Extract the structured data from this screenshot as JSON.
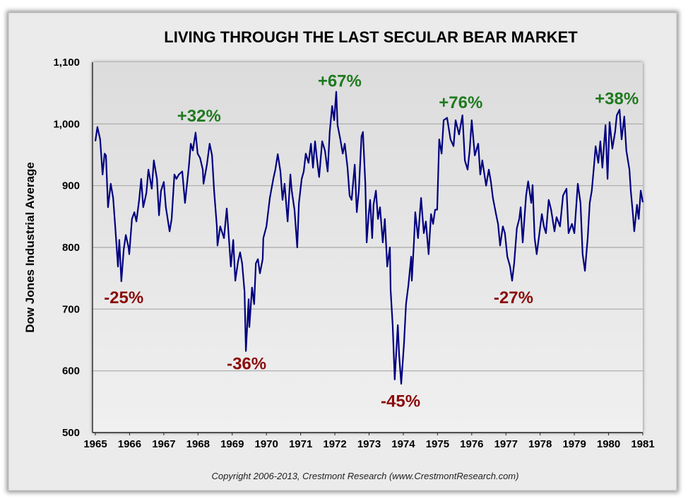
{
  "chart_data": {
    "type": "line",
    "title": "LIVING THROUGH THE LAST SECULAR BEAR MARKET",
    "xlabel": "",
    "ylabel": "Dow Jones Industrial Average",
    "xlim": [
      1965,
      1981
    ],
    "ylim": [
      500,
      1100
    ],
    "x_ticks": [
      "1965",
      "1966",
      "1967",
      "1968",
      "1969",
      "1970",
      "1971",
      "1972",
      "1973",
      "1974",
      "1975",
      "1976",
      "1977",
      "1978",
      "1979",
      "1980",
      "1981"
    ],
    "y_ticks": [
      "500",
      "600",
      "700",
      "800",
      "900",
      "1,000",
      "1,100"
    ],
    "grid": "horizontal",
    "line_color": "#000080",
    "series": [
      {
        "points": [
          [
            1965.0,
            972
          ],
          [
            1965.06,
            995
          ],
          [
            1965.14,
            975
          ],
          [
            1965.21,
            918
          ],
          [
            1965.27,
            952
          ],
          [
            1965.31,
            949
          ],
          [
            1965.37,
            865
          ],
          [
            1965.45,
            903
          ],
          [
            1965.52,
            880
          ],
          [
            1965.58,
            834
          ],
          [
            1965.66,
            769
          ],
          [
            1965.7,
            812
          ],
          [
            1965.76,
            745
          ],
          [
            1965.83,
            797
          ],
          [
            1965.89,
            820
          ],
          [
            1965.97,
            800
          ],
          [
            1965.99,
            789
          ],
          [
            1966.07,
            846
          ],
          [
            1966.14,
            857
          ],
          [
            1966.2,
            842
          ],
          [
            1966.28,
            877
          ],
          [
            1966.34,
            911
          ],
          [
            1966.4,
            865
          ],
          [
            1966.49,
            888
          ],
          [
            1966.55,
            926
          ],
          [
            1966.65,
            895
          ],
          [
            1966.71,
            941
          ],
          [
            1966.8,
            911
          ],
          [
            1966.86,
            852
          ],
          [
            1966.92,
            892
          ],
          [
            1967.0,
            906
          ],
          [
            1967.06,
            865
          ],
          [
            1967.17,
            826
          ],
          [
            1967.23,
            846
          ],
          [
            1967.31,
            918
          ],
          [
            1967.37,
            911
          ],
          [
            1967.44,
            918
          ],
          [
            1967.54,
            923
          ],
          [
            1967.62,
            872
          ],
          [
            1967.73,
            929
          ],
          [
            1967.79,
            968
          ],
          [
            1967.85,
            957
          ],
          [
            1967.93,
            986
          ],
          [
            1967.99,
            952
          ],
          [
            1968.06,
            945
          ],
          [
            1968.14,
            926
          ],
          [
            1968.16,
            903
          ],
          [
            1968.26,
            934
          ],
          [
            1968.34,
            968
          ],
          [
            1968.41,
            949
          ],
          [
            1968.47,
            892
          ],
          [
            1968.55,
            834
          ],
          [
            1968.57,
            803
          ],
          [
            1968.65,
            834
          ],
          [
            1968.76,
            815
          ],
          [
            1968.84,
            863
          ],
          [
            1968.88,
            834
          ],
          [
            1968.96,
            769
          ],
          [
            1969.03,
            812
          ],
          [
            1969.09,
            746
          ],
          [
            1969.17,
            777
          ],
          [
            1969.23,
            792
          ],
          [
            1969.29,
            774
          ],
          [
            1969.36,
            728
          ],
          [
            1969.4,
            632
          ],
          [
            1969.48,
            716
          ],
          [
            1969.5,
            671
          ],
          [
            1969.58,
            735
          ],
          [
            1969.64,
            708
          ],
          [
            1969.69,
            774
          ],
          [
            1969.75,
            781
          ],
          [
            1969.81,
            758
          ],
          [
            1969.89,
            781
          ],
          [
            1969.91,
            815
          ],
          [
            1970.0,
            834
          ],
          [
            1970.1,
            880
          ],
          [
            1970.2,
            911
          ],
          [
            1970.26,
            926
          ],
          [
            1970.33,
            951
          ],
          [
            1970.41,
            923
          ],
          [
            1970.47,
            877
          ],
          [
            1970.53,
            903
          ],
          [
            1970.62,
            842
          ],
          [
            1970.7,
            918
          ],
          [
            1970.74,
            892
          ],
          [
            1970.82,
            861
          ],
          [
            1970.9,
            800
          ],
          [
            1970.95,
            872
          ],
          [
            1971.03,
            911
          ],
          [
            1971.09,
            923
          ],
          [
            1971.15,
            952
          ],
          [
            1971.23,
            937
          ],
          [
            1971.3,
            968
          ],
          [
            1971.36,
            929
          ],
          [
            1971.42,
            972
          ],
          [
            1971.48,
            941
          ],
          [
            1971.54,
            914
          ],
          [
            1971.63,
            972
          ],
          [
            1971.71,
            957
          ],
          [
            1971.79,
            923
          ],
          [
            1971.85,
            987
          ],
          [
            1971.92,
            1029
          ],
          [
            1971.98,
            1006
          ],
          [
            1972.04,
            1052
          ],
          [
            1972.08,
            998
          ],
          [
            1972.16,
            975
          ],
          [
            1972.23,
            952
          ],
          [
            1972.29,
            968
          ],
          [
            1972.37,
            929
          ],
          [
            1972.43,
            884
          ],
          [
            1972.49,
            877
          ],
          [
            1972.58,
            934
          ],
          [
            1972.64,
            857
          ],
          [
            1972.7,
            892
          ],
          [
            1972.78,
            980
          ],
          [
            1972.82,
            987
          ],
          [
            1972.89,
            903
          ],
          [
            1972.93,
            808
          ],
          [
            1972.99,
            854
          ],
          [
            1973.03,
            877
          ],
          [
            1973.09,
            815
          ],
          [
            1973.13,
            869
          ],
          [
            1973.2,
            892
          ],
          [
            1973.26,
            846
          ],
          [
            1973.32,
            865
          ],
          [
            1973.4,
            808
          ],
          [
            1973.46,
            846
          ],
          [
            1973.53,
            769
          ],
          [
            1973.61,
            800
          ],
          [
            1973.63,
            731
          ],
          [
            1973.69,
            674
          ],
          [
            1973.75,
            586
          ],
          [
            1973.84,
            674
          ],
          [
            1973.88,
            625
          ],
          [
            1973.94,
            579
          ],
          [
            1974.02,
            643
          ],
          [
            1974.08,
            708
          ],
          [
            1974.15,
            739
          ],
          [
            1974.23,
            785
          ],
          [
            1974.25,
            746
          ],
          [
            1974.31,
            808
          ],
          [
            1974.35,
            857
          ],
          [
            1974.43,
            815
          ],
          [
            1974.52,
            880
          ],
          [
            1974.6,
            823
          ],
          [
            1974.66,
            842
          ],
          [
            1974.74,
            789
          ],
          [
            1974.81,
            854
          ],
          [
            1974.87,
            838
          ],
          [
            1974.93,
            861
          ],
          [
            1974.99,
            861
          ],
          [
            1975.05,
            975
          ],
          [
            1975.12,
            952
          ],
          [
            1975.18,
            1006
          ],
          [
            1975.28,
            1010
          ],
          [
            1975.38,
            975
          ],
          [
            1975.47,
            964
          ],
          [
            1975.53,
            1006
          ],
          [
            1975.63,
            983
          ],
          [
            1975.73,
            1014
          ],
          [
            1975.8,
            941
          ],
          [
            1975.88,
            926
          ],
          [
            1975.94,
            957
          ],
          [
            1976.0,
            1006
          ],
          [
            1976.09,
            949
          ],
          [
            1976.19,
            968
          ],
          [
            1976.25,
            918
          ],
          [
            1976.31,
            941
          ],
          [
            1976.42,
            900
          ],
          [
            1976.5,
            926
          ],
          [
            1976.56,
            907
          ],
          [
            1976.62,
            880
          ],
          [
            1976.71,
            854
          ],
          [
            1976.77,
            838
          ],
          [
            1976.83,
            803
          ],
          [
            1976.91,
            834
          ],
          [
            1976.97,
            823
          ],
          [
            1977.04,
            785
          ],
          [
            1977.12,
            769
          ],
          [
            1977.18,
            746
          ],
          [
            1977.24,
            774
          ],
          [
            1977.32,
            831
          ],
          [
            1977.39,
            846
          ],
          [
            1977.43,
            865
          ],
          [
            1977.49,
            808
          ],
          [
            1977.59,
            884
          ],
          [
            1977.65,
            907
          ],
          [
            1977.74,
            872
          ],
          [
            1977.78,
            901
          ],
          [
            1977.84,
            815
          ],
          [
            1977.9,
            789
          ],
          [
            1977.96,
            815
          ],
          [
            1978.05,
            854
          ],
          [
            1978.11,
            834
          ],
          [
            1978.17,
            823
          ],
          [
            1978.25,
            877
          ],
          [
            1978.32,
            861
          ],
          [
            1978.42,
            826
          ],
          [
            1978.48,
            849
          ],
          [
            1978.58,
            834
          ],
          [
            1978.67,
            884
          ],
          [
            1978.77,
            895
          ],
          [
            1978.83,
            823
          ],
          [
            1978.93,
            838
          ],
          [
            1979.0,
            823
          ],
          [
            1979.1,
            903
          ],
          [
            1979.18,
            872
          ],
          [
            1979.24,
            789
          ],
          [
            1979.31,
            762
          ],
          [
            1979.39,
            815
          ],
          [
            1979.45,
            872
          ],
          [
            1979.51,
            892
          ],
          [
            1979.57,
            929
          ],
          [
            1979.62,
            964
          ],
          [
            1979.7,
            937
          ],
          [
            1979.76,
            972
          ],
          [
            1979.82,
            929
          ],
          [
            1979.91,
            998
          ],
          [
            1979.97,
            911
          ],
          [
            1980.03,
            1003
          ],
          [
            1980.11,
            960
          ],
          [
            1980.19,
            987
          ],
          [
            1980.24,
            1014
          ],
          [
            1980.32,
            1023
          ],
          [
            1980.38,
            975
          ],
          [
            1980.46,
            1012
          ],
          [
            1980.52,
            957
          ],
          [
            1980.61,
            926
          ],
          [
            1980.65,
            892
          ],
          [
            1980.71,
            854
          ],
          [
            1980.75,
            826
          ],
          [
            1980.83,
            869
          ],
          [
            1980.88,
            846
          ],
          [
            1980.94,
            892
          ],
          [
            1981.0,
            873
          ]
        ]
      }
    ],
    "annotations": [
      {
        "text": "-25%",
        "x": 1965.83,
        "y": 720,
        "kind": "decline"
      },
      {
        "text": "+32%",
        "x": 1968.03,
        "y": 1014,
        "kind": "gain"
      },
      {
        "text": "-36%",
        "x": 1969.42,
        "y": 613,
        "kind": "decline"
      },
      {
        "text": "+67%",
        "x": 1972.14,
        "y": 1071,
        "kind": "gain"
      },
      {
        "text": "-45%",
        "x": 1973.92,
        "y": 552,
        "kind": "decline"
      },
      {
        "text": "+76%",
        "x": 1975.68,
        "y": 1036,
        "kind": "gain"
      },
      {
        "text": "-27%",
        "x": 1977.22,
        "y": 720,
        "kind": "decline"
      },
      {
        "text": "+38%",
        "x": 1980.24,
        "y": 1042,
        "kind": "gain"
      }
    ],
    "colors": {
      "gain": "#1f7a1f",
      "decline": "#8b0a0a"
    }
  },
  "footer": {
    "copyright": "Copyright 2006-2013, Crestmont Research (www.CrestmontResearch.com)"
  }
}
